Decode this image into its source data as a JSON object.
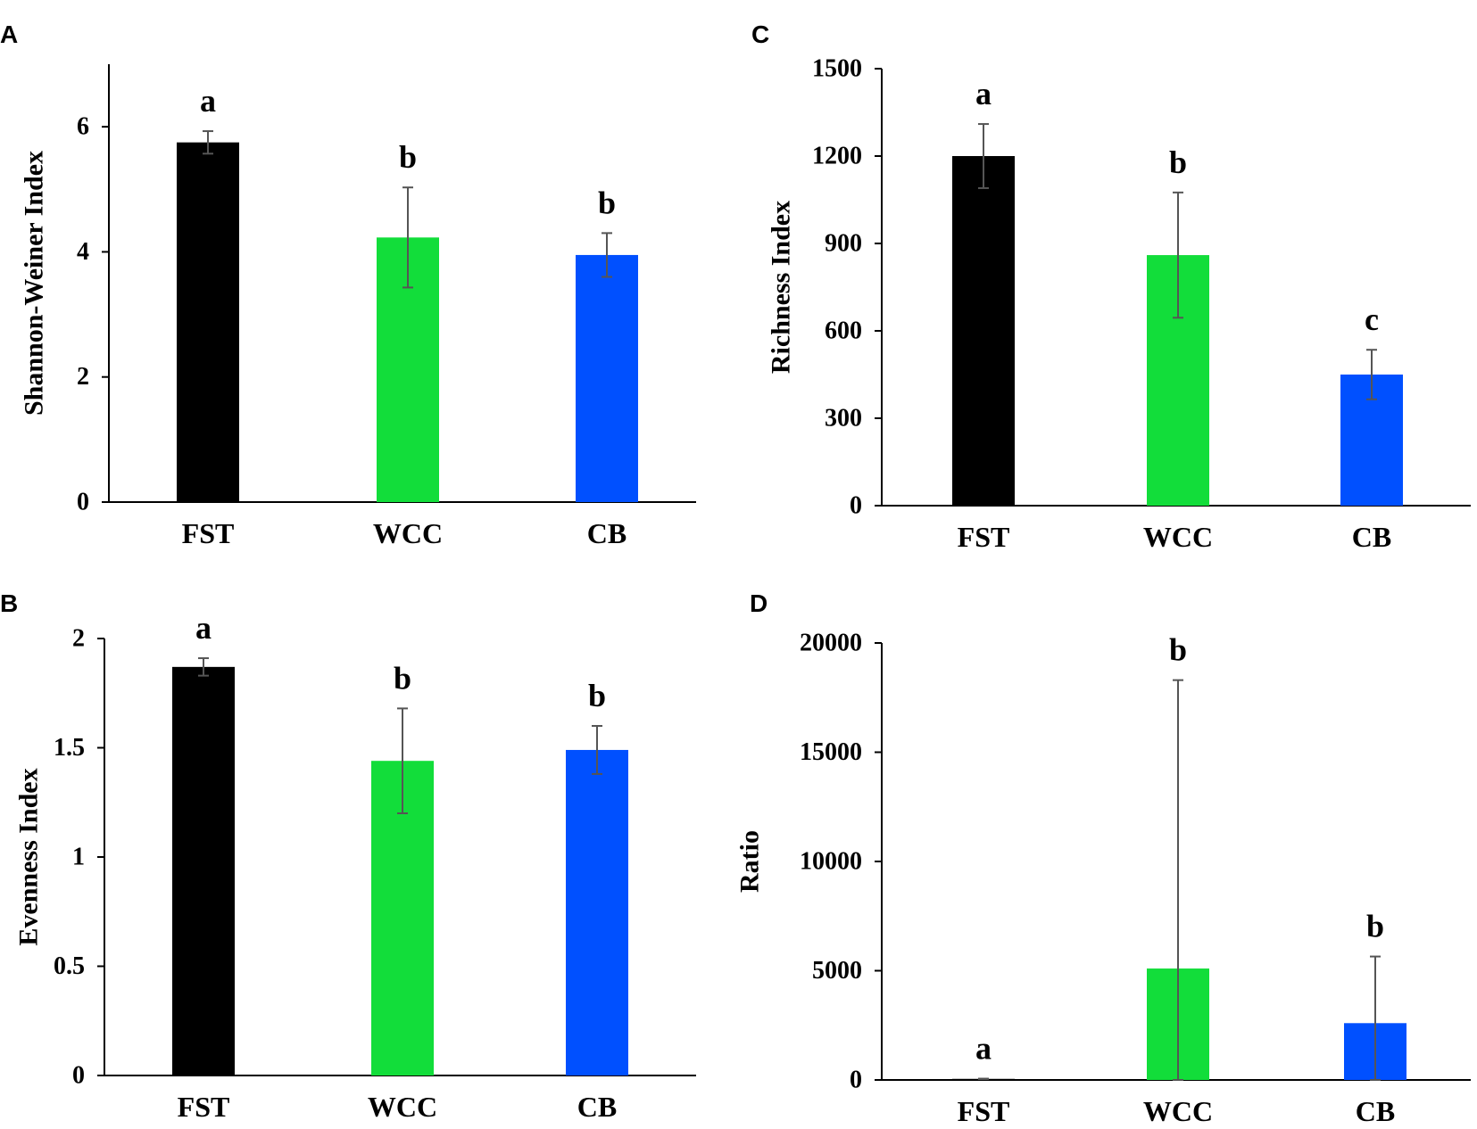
{
  "colors": {
    "FST": "#000000",
    "WCC": "#12DD3A",
    "CB": "#0050FF"
  },
  "chart_data": [
    {
      "panel": "A",
      "type": "bar",
      "categories": [
        "FST",
        "WCC",
        "CB"
      ],
      "values": [
        5.75,
        4.23,
        3.95
      ],
      "errors": [
        0.18,
        0.8,
        0.35
      ],
      "significance": [
        "a",
        "b",
        "b"
      ],
      "ylabel": "Shannon-Weiner Index",
      "xlabel": "",
      "ylim": [
        0,
        7
      ],
      "yticks": [
        0,
        2,
        4,
        6
      ],
      "ytick_labels": [
        "0",
        "2",
        "4",
        "6"
      ]
    },
    {
      "panel": "C",
      "type": "bar",
      "categories": [
        "FST",
        "WCC",
        "CB"
      ],
      "values": [
        1200,
        860,
        450
      ],
      "errors": [
        110,
        215,
        85
      ],
      "significance": [
        "a",
        "b",
        "c"
      ],
      "ylabel": "Richness Index",
      "xlabel": "",
      "ylim": [
        0,
        1500
      ],
      "yticks": [
        0,
        300,
        600,
        900,
        1200,
        1500
      ],
      "ytick_labels": [
        "0",
        "300",
        "600",
        "900",
        "1200",
        "1500"
      ]
    },
    {
      "panel": "B",
      "type": "bar",
      "categories": [
        "FST",
        "WCC",
        "CB"
      ],
      "values": [
        1.87,
        1.44,
        1.49
      ],
      "errors": [
        0.04,
        0.24,
        0.11
      ],
      "significance": [
        "a",
        "b",
        "b"
      ],
      "ylabel": "Evenness Index",
      "xlabel": "",
      "ylim": [
        0,
        2
      ],
      "yticks": [
        0,
        0.5,
        1,
        1.5,
        2
      ],
      "ytick_labels": [
        "0",
        "0.5",
        "1",
        "1.5",
        "2"
      ]
    },
    {
      "panel": "D",
      "type": "bar",
      "categories": [
        "FST",
        "WCC",
        "CB"
      ],
      "values": [
        50,
        5100,
        2600
      ],
      "errors": [
        10,
        13200,
        3050
      ],
      "significance": [
        "a",
        "b",
        "b"
      ],
      "ylabel": "Ratio",
      "xlabel": "",
      "ylim": [
        0,
        20000
      ],
      "yticks": [
        0,
        5000,
        10000,
        15000,
        20000
      ],
      "ytick_labels": [
        "0",
        "5000",
        "10000",
        "15000",
        "20000"
      ]
    }
  ]
}
